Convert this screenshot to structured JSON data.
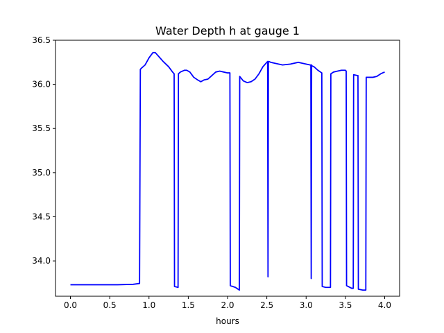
{
  "chart_data": {
    "type": "line",
    "title": "Water Depth h at gauge 1",
    "xlabel": "hours",
    "ylabel": "",
    "xlim": [
      -0.19,
      4.19
    ],
    "ylim": [
      33.6,
      36.5
    ],
    "xticks": [
      0.0,
      0.5,
      1.0,
      1.5,
      2.0,
      2.5,
      3.0,
      3.5,
      4.0
    ],
    "xtick_labels": [
      "0.0",
      "0.5",
      "1.0",
      "1.5",
      "2.0",
      "2.5",
      "3.0",
      "3.5",
      "4.0"
    ],
    "yticks": [
      34.0,
      34.5,
      35.0,
      35.5,
      36.0,
      36.5
    ],
    "ytick_labels": [
      "34.0",
      "34.5",
      "35.0",
      "35.5",
      "36.0",
      "36.5"
    ],
    "grid": false,
    "series": [
      {
        "color": "#0000ff",
        "x": [
          0.0,
          0.3,
          0.6,
          0.8,
          0.88,
          0.89,
          0.9,
          0.95,
          1.0,
          1.05,
          1.08,
          1.12,
          1.18,
          1.25,
          1.3,
          1.32,
          1.325,
          1.37,
          1.375,
          1.4,
          1.45,
          1.48,
          1.52,
          1.57,
          1.62,
          1.66,
          1.7,
          1.75,
          1.8,
          1.85,
          1.9,
          1.95,
          2.0,
          2.03,
          2.035,
          2.1,
          2.15,
          2.155,
          2.2,
          2.25,
          2.3,
          2.35,
          2.4,
          2.45,
          2.5,
          2.51,
          2.515,
          2.52,
          2.525,
          2.55,
          2.6,
          2.7,
          2.8,
          2.9,
          2.95,
          3.0,
          3.05,
          3.06,
          3.065,
          3.07,
          3.075,
          3.1,
          3.15,
          3.2,
          3.205,
          3.25,
          3.3,
          3.31,
          3.315,
          3.35,
          3.4,
          3.45,
          3.5,
          3.51,
          3.515,
          3.58,
          3.6,
          3.605,
          3.65,
          3.66,
          3.665,
          3.72,
          3.76,
          3.765,
          3.85,
          3.9,
          3.95,
          4.0
        ],
        "y": [
          33.73,
          33.73,
          33.73,
          33.735,
          33.745,
          36.17,
          36.18,
          36.22,
          36.3,
          36.36,
          36.36,
          36.32,
          36.26,
          36.2,
          36.14,
          36.12,
          33.71,
          33.7,
          36.12,
          36.14,
          36.16,
          36.16,
          36.14,
          36.08,
          36.05,
          36.03,
          36.05,
          36.06,
          36.1,
          36.14,
          36.15,
          36.14,
          36.13,
          36.13,
          33.72,
          33.7,
          33.67,
          36.09,
          36.04,
          36.02,
          36.03,
          36.06,
          36.12,
          36.2,
          36.25,
          36.26,
          33.82,
          36.25,
          36.26,
          36.25,
          36.24,
          36.22,
          36.23,
          36.25,
          36.24,
          36.23,
          36.22,
          36.22,
          33.8,
          36.22,
          36.21,
          36.2,
          36.16,
          36.13,
          33.71,
          33.7,
          33.7,
          33.7,
          36.12,
          36.14,
          36.15,
          36.16,
          36.16,
          36.15,
          33.72,
          33.69,
          33.69,
          36.11,
          36.1,
          36.1,
          33.68,
          33.67,
          33.67,
          36.08,
          36.08,
          36.09,
          36.12,
          36.14
        ]
      }
    ]
  }
}
